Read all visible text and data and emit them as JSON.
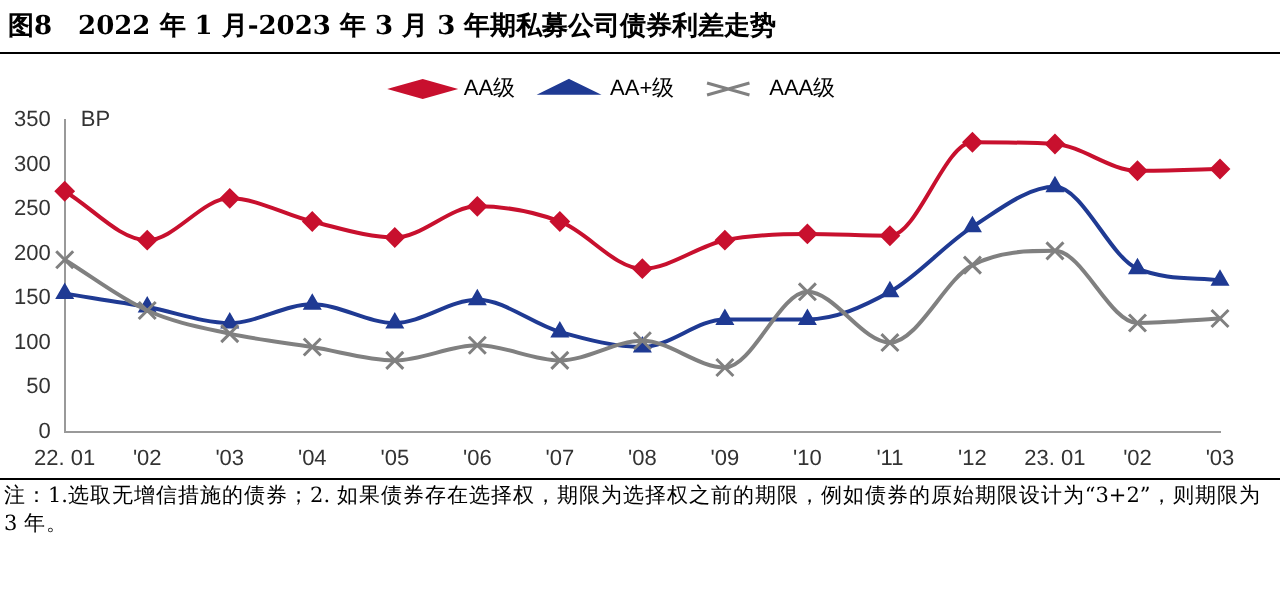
{
  "chart_data": {
    "type": "line",
    "title": "图8　2022 年 1 月-2023 年 3 月 3 年期私募公司债券利差走势",
    "ylabel": "BP",
    "categories": [
      "22. 01",
      "'02",
      "'03",
      "'04",
      "'05",
      "'06",
      "'07",
      "'08",
      "'09",
      "'10",
      "'11",
      "'12",
      "23. 01",
      "'02",
      "'03"
    ],
    "series": [
      {
        "name": "AA级",
        "color": "#c8102e",
        "marker": "diamond",
        "values": [
          270,
          215,
          262,
          236,
          218,
          253,
          236,
          183,
          215,
          222,
          220,
          325,
          323,
          293,
          295
        ]
      },
      {
        "name": "AA+级",
        "color": "#1f3a93",
        "marker": "triangle",
        "values": [
          155,
          140,
          122,
          143,
          122,
          148,
          112,
          95,
          126,
          126,
          157,
          230,
          275,
          183,
          170
        ]
      },
      {
        "name": "AAA级",
        "color": "#808080",
        "marker": "cross",
        "values": [
          193,
          136,
          110,
          95,
          80,
          97,
          80,
          102,
          72,
          157,
          100,
          187,
          203,
          122,
          127
        ]
      }
    ],
    "ylim": [
      0,
      350
    ],
    "yticks": [
      0,
      50,
      100,
      150,
      200,
      250,
      300,
      350
    ],
    "grid": false,
    "legend": "top",
    "annotations": [
      "注：1.选取无增信措施的债券；2. 如果债券存在选择权，期限为选择权之前的期限，例如债券的原始期限设计为“3+2”，则期限为 3 年。"
    ]
  }
}
